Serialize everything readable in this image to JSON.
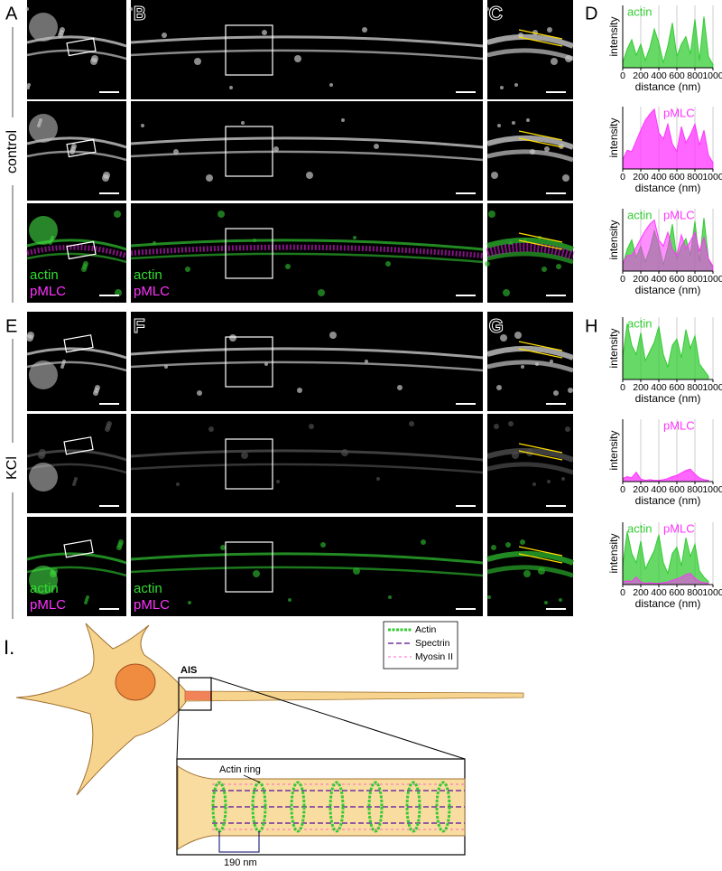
{
  "panel_labels": [
    "A",
    "B",
    "C",
    "D",
    "E",
    "F",
    "G",
    "H"
  ],
  "conditions": [
    "control",
    "KCl"
  ],
  "channels": [
    "actin",
    "pMLC"
  ],
  "chart_data": [
    {
      "type": "area",
      "xlabel": "distance (nm)",
      "ylabel": "intensity",
      "x": [
        0,
        50,
        100,
        150,
        200,
        250,
        300,
        350,
        400,
        450,
        500,
        550,
        600,
        650,
        700,
        750,
        800,
        850,
        900,
        950,
        1000
      ],
      "series": [
        {
          "name": "actin",
          "color": "#33cc33",
          "values": [
            8,
            30,
            45,
            20,
            38,
            12,
            32,
            62,
            40,
            8,
            35,
            72,
            18,
            38,
            50,
            22,
            78,
            12,
            82,
            18,
            5
          ]
        }
      ],
      "xlim": [
        0,
        1000
      ],
      "xticks": [
        0,
        200,
        400,
        600,
        800,
        1000
      ],
      "ylim": [
        0,
        100
      ],
      "grid": true
    },
    {
      "type": "area",
      "xlabel": "distance (nm)",
      "ylabel": "intensity",
      "x": [
        0,
        50,
        100,
        150,
        200,
        250,
        300,
        350,
        400,
        450,
        500,
        550,
        600,
        650,
        700,
        750,
        800,
        850,
        900,
        950,
        1000
      ],
      "series": [
        {
          "name": "pMLC",
          "color": "#ff33ff",
          "values": [
            15,
            30,
            28,
            45,
            62,
            78,
            88,
            96,
            58,
            48,
            72,
            40,
            28,
            68,
            42,
            55,
            72,
            38,
            62,
            22,
            10
          ]
        }
      ],
      "xlim": [
        0,
        1000
      ],
      "xticks": [
        0,
        200,
        400,
        600,
        800,
        1000
      ],
      "ylim": [
        0,
        100
      ],
      "grid": true
    },
    {
      "type": "area",
      "xlabel": "distance (nm)",
      "ylabel": "intensity",
      "x": [
        0,
        50,
        100,
        150,
        200,
        250,
        300,
        350,
        400,
        450,
        500,
        550,
        600,
        650,
        700,
        750,
        800,
        850,
        900,
        950,
        1000
      ],
      "series": [
        {
          "name": "actin",
          "color": "#33cc33",
          "values": [
            10,
            35,
            50,
            22,
            40,
            15,
            35,
            65,
            42,
            10,
            38,
            75,
            20,
            40,
            52,
            25,
            80,
            15,
            85,
            20,
            5
          ]
        },
        {
          "name": "pMLC",
          "color": "#ff33ff",
          "values": [
            12,
            25,
            25,
            38,
            52,
            65,
            75,
            82,
            50,
            40,
            62,
            35,
            25,
            58,
            36,
            48,
            62,
            32,
            54,
            20,
            8
          ]
        }
      ],
      "xlim": [
        0,
        1000
      ],
      "xticks": [
        0,
        200,
        400,
        600,
        800,
        1000
      ],
      "ylim": [
        0,
        100
      ],
      "grid": true
    },
    {
      "type": "area",
      "xlabel": "distance (nm)",
      "ylabel": "intensity",
      "x": [
        0,
        50,
        100,
        150,
        200,
        250,
        300,
        350,
        400,
        450,
        500,
        550,
        600,
        650,
        700,
        750,
        800,
        850,
        900,
        950
      ],
      "series": [
        {
          "name": "actin",
          "color": "#33cc33",
          "values": [
            35,
            90,
            55,
            40,
            75,
            30,
            45,
            60,
            85,
            40,
            20,
            55,
            65,
            35,
            80,
            50,
            70,
            25,
            15,
            5
          ]
        }
      ],
      "xlim": [
        0,
        1000
      ],
      "xticks": [
        0,
        200,
        400,
        600,
        800,
        1000
      ],
      "ylim": [
        0,
        100
      ],
      "grid": true
    },
    {
      "type": "area",
      "xlabel": "distance (nm)",
      "ylabel": "intensity",
      "x": [
        0,
        50,
        100,
        150,
        200,
        250,
        300,
        350,
        400,
        450,
        500,
        550,
        600,
        650,
        700,
        750,
        800,
        850,
        900,
        950
      ],
      "series": [
        {
          "name": "pMLC",
          "color": "#ff33ff",
          "values": [
            5,
            8,
            6,
            15,
            4,
            2,
            3,
            2,
            2,
            3,
            5,
            8,
            10,
            14,
            18,
            20,
            12,
            6,
            3,
            2
          ]
        }
      ],
      "xlim": [
        0,
        1000
      ],
      "xticks": [
        0,
        200,
        400,
        600,
        800,
        1000
      ],
      "ylim": [
        0,
        100
      ],
      "grid": true
    },
    {
      "type": "area",
      "xlabel": "distance (nm)",
      "ylabel": "intensity",
      "x": [
        0,
        50,
        100,
        150,
        200,
        250,
        300,
        350,
        400,
        450,
        500,
        550,
        600,
        650,
        700,
        750,
        800,
        850,
        900,
        950
      ],
      "series": [
        {
          "name": "actin",
          "color": "#33cc33",
          "values": [
            30,
            85,
            50,
            35,
            70,
            25,
            40,
            55,
            80,
            35,
            18,
            50,
            60,
            30,
            75,
            45,
            65,
            22,
            12,
            5
          ]
        },
        {
          "name": "pMLC",
          "color": "#ff33ff",
          "values": [
            4,
            6,
            5,
            12,
            4,
            2,
            3,
            2,
            2,
            3,
            4,
            7,
            9,
            12,
            16,
            18,
            10,
            5,
            3,
            2
          ]
        }
      ],
      "xlim": [
        0,
        1000
      ],
      "xticks": [
        0,
        200,
        400,
        600,
        800,
        1000
      ],
      "ylim": [
        0,
        100
      ],
      "grid": true
    }
  ],
  "diagram": {
    "label": "I.",
    "ais": "AIS",
    "actin_ring": "Actin ring",
    "scale_bar": "190 nm",
    "legend": [
      "Actin",
      "Spectrin",
      "Myosin II"
    ]
  }
}
